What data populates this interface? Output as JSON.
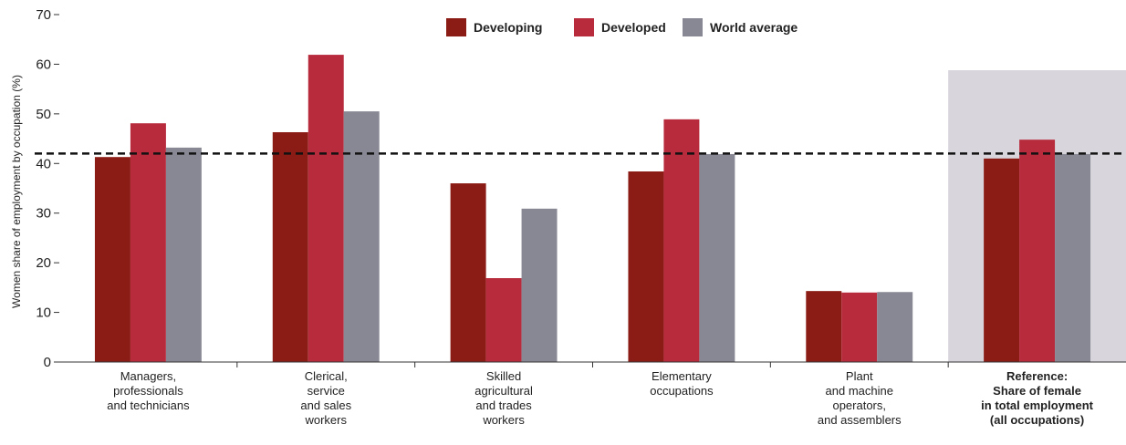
{
  "chart_data": {
    "type": "bar",
    "y_label": "Women share of employment by occupation (%)",
    "categories": [
      "Managers,\nprofessionals\nand technicians",
      "Clerical,\nservice\nand sales\nworkers",
      "Skilled\nagricultural\nand trades\nworkers",
      "Elementary\noccupations",
      "Plant\nand machine\noperators,\nand assemblers",
      "Reference:\nShare of female\nin total employment\n(all occupations)"
    ],
    "series": [
      {
        "name": "Developing",
        "color": "#8b1c15",
        "values": [
          41.3,
          46.3,
          36.0,
          38.4,
          14.3,
          41.0
        ]
      },
      {
        "name": "Developed",
        "color": "#b72b3d",
        "values": [
          48.1,
          61.9,
          16.9,
          48.9,
          14.0,
          44.8
        ]
      },
      {
        "name": "World average",
        "color": "#888894",
        "values": [
          43.2,
          50.5,
          30.9,
          41.9,
          14.1,
          41.9
        ]
      }
    ],
    "ylim": [
      0,
      70
    ],
    "yticks": [
      0,
      10,
      20,
      30,
      40,
      50,
      60,
      70
    ],
    "reference_line": 42,
    "highlight_index": 5,
    "legend": "top"
  }
}
